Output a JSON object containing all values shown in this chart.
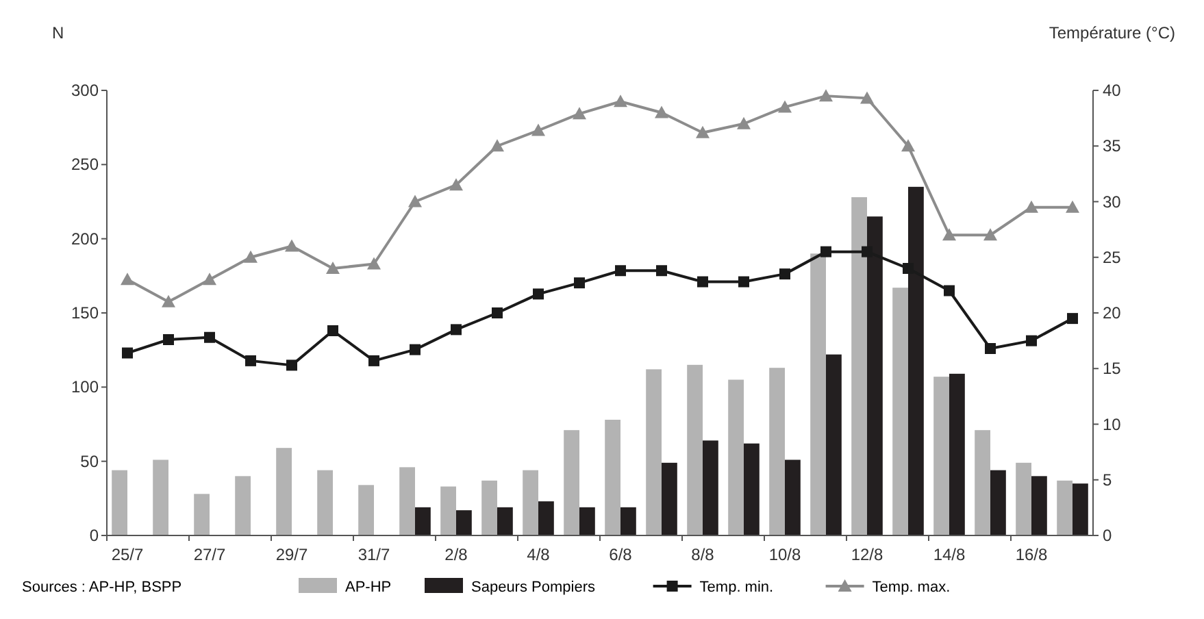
{
  "chart_data": {
    "type": "bar",
    "ylabel": "N",
    "y2label": "Température (°C)",
    "categories": [
      "25/7",
      null,
      "27/7",
      null,
      "29/7",
      null,
      "31/7",
      null,
      "2/8",
      null,
      "4/8",
      null,
      "6/8",
      null,
      "8/8",
      null,
      "10/8",
      null,
      "12/8",
      null,
      "14/8",
      null,
      "16/8",
      null
    ],
    "series": [
      {
        "name": "AP-HP",
        "color": "#b3b3b3",
        "values": [
          44,
          51,
          28,
          40,
          59,
          44,
          34,
          46,
          33,
          37,
          44,
          71,
          78,
          112,
          115,
          105,
          113,
          190,
          228,
          167,
          107,
          71,
          49,
          37
        ]
      },
      {
        "name": "Sapeurs Pompiers",
        "color": "#231f20",
        "values": [
          null,
          null,
          null,
          null,
          null,
          null,
          null,
          19,
          17,
          19,
          23,
          19,
          19,
          49,
          64,
          62,
          51,
          122,
          215,
          235,
          109,
          44,
          40,
          35
        ]
      },
      {
        "name": "Temp. min.",
        "type": "line",
        "axis": "y2",
        "marker": "square",
        "color": "#1a1a1a",
        "values": [
          16.4,
          17.6,
          17.8,
          15.7,
          15.3,
          18.4,
          15.7,
          16.7,
          18.5,
          20,
          21.7,
          22.7,
          23.8,
          23.8,
          22.8,
          22.8,
          23.5,
          25.5,
          25.5,
          24,
          22,
          16.8,
          17.5,
          19.5
        ]
      },
      {
        "name": "Temp. max.",
        "type": "line",
        "axis": "y2",
        "marker": "triangle",
        "color": "#8c8c8c",
        "values": [
          23,
          21,
          23,
          25,
          26,
          24,
          24.4,
          30,
          31.5,
          35,
          36.4,
          37.9,
          39,
          38,
          36.2,
          37,
          38.5,
          39.5,
          39.3,
          35,
          27,
          27,
          29.5,
          29.5
        ]
      }
    ],
    "ylim": [
      0,
      300
    ],
    "yticks": [
      0,
      50,
      100,
      150,
      200,
      250,
      300
    ],
    "y2lim": [
      0,
      40
    ],
    "y2ticks": [
      0,
      5,
      10,
      15,
      20,
      25,
      30,
      35,
      40
    ],
    "grid": false,
    "legend": "bottom",
    "annotations": [
      "Sources : AP-HP, BSPP"
    ]
  }
}
